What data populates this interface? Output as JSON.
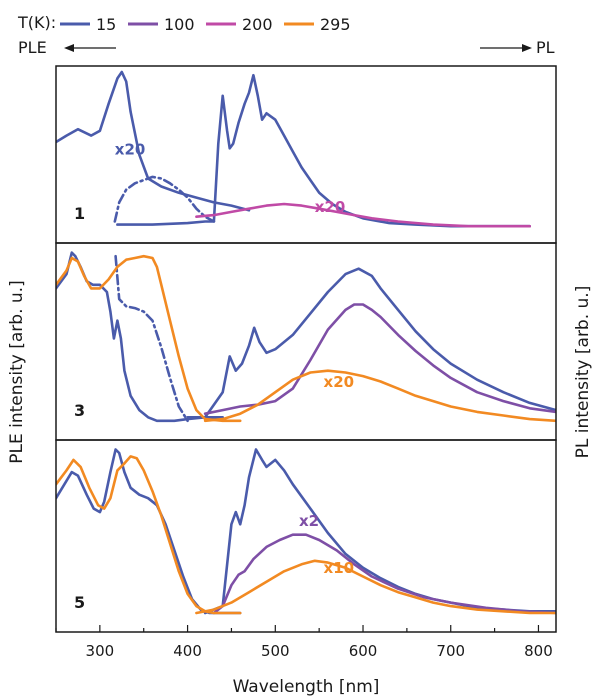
{
  "chart_data": {
    "type": "line",
    "xlabel": "Wavelength [nm]",
    "ylabel_left": "PLE intensity [arb. u.]",
    "ylabel_right": "PL intensity [arb. u.]",
    "xlim": [
      250,
      820
    ],
    "xticks": [
      300,
      400,
      500,
      600,
      700,
      800
    ],
    "ylim": [
      0,
      1
    ],
    "legend_title": "T(K):",
    "legend": [
      {
        "label": "15",
        "color": "#4a5bab"
      },
      {
        "label": "100",
        "color": "#7e4fa6"
      },
      {
        "label": "200",
        "color": "#c04aa6"
      },
      {
        "label": "295",
        "color": "#f28a22"
      }
    ],
    "ple_label": "PLE",
    "pl_label": "PL",
    "panels": [
      {
        "label": "1",
        "annotations": [
          {
            "text": "x20",
            "x": 317,
            "y": 0.48,
            "color": "#4a5bab"
          },
          {
            "text": "x20",
            "x": 545,
            "y": 0.12,
            "color": "#c04aa6"
          }
        ],
        "series": [
          {
            "temp": "15",
            "color": "#4a5bab",
            "style": "solid",
            "x": [
              250,
              262,
              275,
              290,
              300,
              310,
              320,
              325,
              330,
              335,
              345,
              355,
              370,
              390,
              410,
              430,
              450,
              470
            ],
            "y": [
              0.56,
              0.6,
              0.64,
              0.6,
              0.63,
              0.8,
              0.96,
              1.0,
              0.94,
              0.75,
              0.48,
              0.33,
              0.28,
              0.24,
              0.21,
              0.18,
              0.16,
              0.13
            ]
          },
          {
            "temp": "15",
            "color": "#4a5bab",
            "style": "dashdot",
            "x": [
              317,
              322,
              330,
              340,
              350,
              360,
              370,
              380,
              390,
              400,
              410,
              420,
              430
            ],
            "y": [
              0.06,
              0.18,
              0.26,
              0.3,
              0.32,
              0.34,
              0.33,
              0.3,
              0.26,
              0.21,
              0.14,
              0.09,
              0.06
            ]
          },
          {
            "temp": "15",
            "color": "#4a5bab",
            "style": "solid",
            "x": [
              320,
              360,
              400,
              420,
              430,
              435,
              440,
              445,
              448,
              452,
              458,
              465,
              470,
              475,
              480,
              485,
              490,
              500,
              510,
              520,
              530,
              540,
              550,
              565,
              580,
              600,
              630,
              660,
              700,
              750,
              790
            ],
            "y": [
              0.04,
              0.04,
              0.05,
              0.06,
              0.06,
              0.55,
              0.85,
              0.63,
              0.52,
              0.55,
              0.68,
              0.8,
              0.87,
              0.98,
              0.85,
              0.7,
              0.74,
              0.7,
              0.6,
              0.5,
              0.4,
              0.32,
              0.24,
              0.17,
              0.12,
              0.08,
              0.05,
              0.04,
              0.03,
              0.03,
              0.03
            ]
          },
          {
            "temp": "200",
            "color": "#c04aa6",
            "style": "solid",
            "x": [
              410,
              430,
              450,
              470,
              490,
              510,
              530,
              550,
              570,
              590,
              610,
              640,
              680,
              720,
              760,
              790
            ],
            "y": [
              0.09,
              0.1,
              0.12,
              0.14,
              0.16,
              0.17,
              0.16,
              0.14,
              0.12,
              0.1,
              0.08,
              0.06,
              0.04,
              0.03,
              0.03,
              0.03
            ]
          }
        ]
      },
      {
        "label": "3",
        "annotations": [
          {
            "text": "x20",
            "x": 555,
            "y": 0.23,
            "color": "#f28a22"
          }
        ],
        "series": [
          {
            "temp": "15",
            "color": "#4a5bab",
            "style": "solid",
            "x": [
              250,
              262,
              268,
              272,
              278,
              285,
              292,
              300,
              308,
              312,
              316,
              320,
              324,
              328,
              335,
              345,
              355,
              365,
              375,
              385,
              400,
              420,
              440
            ],
            "y": [
              0.78,
              0.86,
              0.98,
              0.96,
              0.9,
              0.82,
              0.8,
              0.8,
              0.76,
              0.65,
              0.5,
              0.6,
              0.5,
              0.32,
              0.18,
              0.1,
              0.06,
              0.04,
              0.04,
              0.04,
              0.05,
              0.06,
              0.06
            ]
          },
          {
            "temp": "15",
            "color": "#4a5bab",
            "style": "dashdot",
            "x": [
              318,
              322,
              330,
              340,
              350,
              360,
              370,
              380,
              390,
              400
            ],
            "y": [
              0.96,
              0.72,
              0.68,
              0.67,
              0.65,
              0.6,
              0.45,
              0.28,
              0.12,
              0.04
            ]
          },
          {
            "temp": "15",
            "color": "#4a5bab",
            "style": "solid",
            "x": [
              400,
              420,
              440,
              448,
              455,
              462,
              470,
              476,
              482,
              490,
              500,
              520,
              540,
              560,
              580,
              595,
              610,
              620,
              640,
              660,
              680,
              700,
              730,
              760,
              790,
              820
            ],
            "y": [
              0.06,
              0.06,
              0.2,
              0.4,
              0.32,
              0.36,
              0.46,
              0.56,
              0.48,
              0.42,
              0.44,
              0.52,
              0.64,
              0.76,
              0.86,
              0.89,
              0.85,
              0.78,
              0.66,
              0.54,
              0.44,
              0.36,
              0.27,
              0.2,
              0.14,
              0.1
            ]
          },
          {
            "temp": "100",
            "color": "#7e4fa6",
            "style": "solid",
            "x": [
              420,
              440,
              460,
              480,
              500,
              520,
              540,
              560,
              580,
              590,
              600,
              610,
              620,
              640,
              660,
              680,
              700,
              730,
              760,
              790,
              820
            ],
            "y": [
              0.08,
              0.1,
              0.12,
              0.13,
              0.15,
              0.22,
              0.38,
              0.55,
              0.66,
              0.69,
              0.69,
              0.66,
              0.62,
              0.52,
              0.43,
              0.35,
              0.28,
              0.2,
              0.15,
              0.11,
              0.09
            ]
          },
          {
            "temp": "295",
            "color": "#f28a22",
            "style": "solid",
            "x": [
              250,
              262,
              268,
              275,
              282,
              290,
              300,
              310,
              320,
              330,
              340,
              350,
              360,
              365,
              370,
              380,
              390,
              400,
              410,
              420,
              440,
              460
            ],
            "y": [
              0.8,
              0.88,
              0.95,
              0.93,
              0.85,
              0.78,
              0.78,
              0.83,
              0.9,
              0.94,
              0.95,
              0.96,
              0.95,
              0.9,
              0.8,
              0.6,
              0.4,
              0.22,
              0.1,
              0.05,
              0.04,
              0.04
            ]
          },
          {
            "temp": "295",
            "color": "#f28a22",
            "style": "solid",
            "x": [
              420,
              440,
              460,
              480,
              500,
              520,
              540,
              560,
              580,
              600,
              620,
              640,
              660,
              680,
              700,
              730,
              760,
              790,
              820
            ],
            "y": [
              0.04,
              0.05,
              0.08,
              0.13,
              0.2,
              0.27,
              0.31,
              0.32,
              0.31,
              0.29,
              0.26,
              0.22,
              0.18,
              0.15,
              0.12,
              0.09,
              0.07,
              0.05,
              0.04
            ]
          }
        ]
      },
      {
        "label": "5",
        "annotations": [
          {
            "text": "x2",
            "x": 527,
            "y": 0.54,
            "color": "#7e4fa6"
          },
          {
            "text": "x10",
            "x": 555,
            "y": 0.27,
            "color": "#f28a22"
          }
        ],
        "series": [
          {
            "temp": "15",
            "color": "#4a5bab",
            "style": "solid",
            "x": [
              250,
              262,
              268,
              275,
              285,
              293,
              300,
              305,
              312,
              318,
              322,
              328,
              335,
              345,
              355,
              365,
              375,
              385,
              395,
              405,
              415,
              425,
              440,
              460
            ],
            "y": [
              0.7,
              0.8,
              0.85,
              0.83,
              0.72,
              0.64,
              0.62,
              0.68,
              0.85,
              0.98,
              0.96,
              0.85,
              0.76,
              0.72,
              0.7,
              0.66,
              0.55,
              0.4,
              0.25,
              0.12,
              0.06,
              0.04,
              0.04,
              0.04
            ]
          },
          {
            "temp": "15",
            "color": "#4a5bab",
            "style": "solid",
            "x": [
              420,
              440,
              450,
              455,
              460,
              465,
              470,
              478,
              485,
              490,
              500,
              510,
              520,
              540,
              560,
              580,
              600,
              620,
              640,
              660,
              680,
              700,
              730,
              760,
              790,
              820
            ],
            "y": [
              0.04,
              0.08,
              0.55,
              0.62,
              0.55,
              0.66,
              0.82,
              0.98,
              0.92,
              0.88,
              0.92,
              0.86,
              0.78,
              0.64,
              0.5,
              0.38,
              0.3,
              0.24,
              0.19,
              0.15,
              0.12,
              0.1,
              0.07,
              0.06,
              0.05,
              0.05
            ]
          },
          {
            "temp": "100",
            "color": "#7e4fa6",
            "style": "solid",
            "x": [
              430,
              440,
              450,
              458,
              465,
              475,
              490,
              505,
              520,
              535,
              550,
              570,
              590,
              610,
              640,
              670,
              700,
              740,
              780,
              820
            ],
            "y": [
              0.04,
              0.08,
              0.2,
              0.26,
              0.28,
              0.35,
              0.42,
              0.46,
              0.49,
              0.49,
              0.46,
              0.4,
              0.32,
              0.25,
              0.18,
              0.13,
              0.1,
              0.07,
              0.05,
              0.04
            ]
          },
          {
            "temp": "295",
            "color": "#f28a22",
            "style": "solid",
            "x": [
              250,
              262,
              270,
              278,
              288,
              298,
              305,
              312,
              320,
              328,
              335,
              342,
              350,
              360,
              370,
              380,
              390,
              400,
              410,
              420,
              430,
              445,
              460
            ],
            "y": [
              0.78,
              0.86,
              0.92,
              0.88,
              0.76,
              0.66,
              0.64,
              0.7,
              0.86,
              0.9,
              0.94,
              0.93,
              0.86,
              0.74,
              0.6,
              0.44,
              0.28,
              0.15,
              0.08,
              0.05,
              0.04,
              0.04,
              0.04
            ]
          },
          {
            "temp": "295",
            "color": "#f28a22",
            "style": "solid",
            "x": [
              410,
              430,
              450,
              470,
              490,
              510,
              530,
              545,
              560,
              580,
              600,
              620,
              640,
              660,
              680,
              700,
              730,
              760,
              790,
              820
            ],
            "y": [
              0.04,
              0.06,
              0.1,
              0.16,
              0.22,
              0.28,
              0.32,
              0.34,
              0.33,
              0.3,
              0.25,
              0.2,
              0.16,
              0.13,
              0.1,
              0.08,
              0.06,
              0.05,
              0.04,
              0.04
            ]
          }
        ]
      }
    ]
  }
}
